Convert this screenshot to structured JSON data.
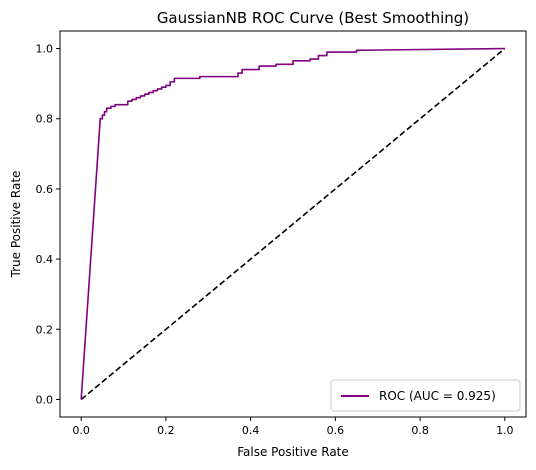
{
  "chart_data": {
    "type": "line",
    "title": "GaussianNB ROC Curve (Best Smoothing)",
    "xlabel": "False Positive Rate",
    "ylabel": "True Positive Rate",
    "xlim": [
      -0.05,
      1.05
    ],
    "ylim": [
      -0.05,
      1.05
    ],
    "xticks": [
      "0.0",
      "0.2",
      "0.4",
      "0.6",
      "0.8",
      "1.0"
    ],
    "yticks": [
      "0.0",
      "0.2",
      "0.4",
      "0.6",
      "0.8",
      "1.0"
    ],
    "grid": false,
    "legend_position": "lower-right",
    "series": [
      {
        "name": "ROC (AUC = 0.925)",
        "color": "#800080",
        "style": "solid",
        "x": [
          0.0,
          0.045,
          0.045,
          0.05,
          0.05,
          0.055,
          0.055,
          0.06,
          0.06,
          0.07,
          0.07,
          0.08,
          0.08,
          0.1,
          0.11,
          0.11,
          0.12,
          0.12,
          0.13,
          0.13,
          0.14,
          0.14,
          0.15,
          0.15,
          0.16,
          0.16,
          0.17,
          0.17,
          0.18,
          0.18,
          0.19,
          0.19,
          0.2,
          0.2,
          0.21,
          0.21,
          0.22,
          0.22,
          0.28,
          0.28,
          0.37,
          0.37,
          0.38,
          0.38,
          0.42,
          0.42,
          0.46,
          0.46,
          0.5,
          0.5,
          0.54,
          0.54,
          0.56,
          0.56,
          0.58,
          0.58,
          0.65,
          0.65,
          1.0
        ],
        "y": [
          0.0,
          0.8,
          0.8,
          0.8,
          0.81,
          0.81,
          0.82,
          0.82,
          0.83,
          0.83,
          0.835,
          0.835,
          0.84,
          0.84,
          0.84,
          0.85,
          0.85,
          0.855,
          0.855,
          0.86,
          0.86,
          0.865,
          0.865,
          0.87,
          0.87,
          0.875,
          0.875,
          0.88,
          0.88,
          0.885,
          0.885,
          0.89,
          0.89,
          0.895,
          0.895,
          0.905,
          0.905,
          0.915,
          0.915,
          0.92,
          0.92,
          0.93,
          0.93,
          0.94,
          0.94,
          0.95,
          0.95,
          0.955,
          0.955,
          0.965,
          0.965,
          0.97,
          0.97,
          0.98,
          0.98,
          0.99,
          0.99,
          0.995,
          1.0
        ]
      },
      {
        "name": "",
        "color": "#000000",
        "style": "dashed",
        "x": [
          0.0,
          1.0
        ],
        "y": [
          0.0,
          1.0
        ]
      }
    ]
  }
}
